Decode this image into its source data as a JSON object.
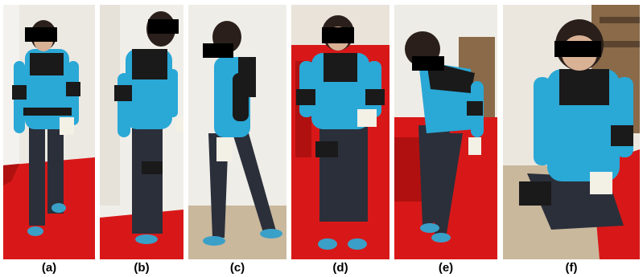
{
  "figure": {
    "panels": [
      {
        "label": "(a)",
        "pose": "standing-front"
      },
      {
        "label": "(b)",
        "pose": "standing-side-back"
      },
      {
        "label": "(c)",
        "pose": "walking-side"
      },
      {
        "label": "(d)",
        "pose": "sitting-front"
      },
      {
        "label": "(e)",
        "pose": "bending-sitting"
      },
      {
        "label": "(f)",
        "pose": "kneeling"
      }
    ]
  },
  "colors": {
    "shirt": "#2aa8d6",
    "vest": "#1a1a1a",
    "jeans": "#2b2f3a",
    "shoes": "#3aa0c8",
    "floor_red": "#d81818",
    "wall": "#ece9e2",
    "censor": "#000000",
    "device": "#f3f0e6"
  }
}
